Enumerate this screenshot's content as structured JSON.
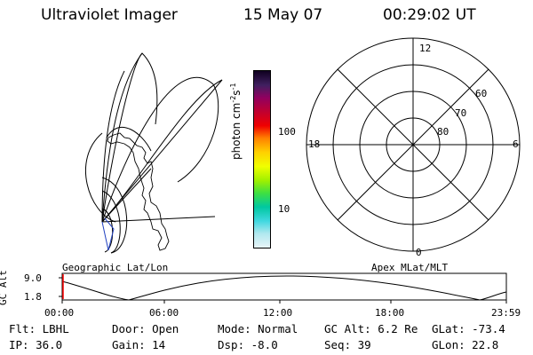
{
  "header": {
    "title": "Ultraviolet Imager",
    "date": "15 May 07",
    "time": "00:29:02 UT"
  },
  "geo_map": {
    "label": "Geographic Lat/Lon"
  },
  "colorbar": {
    "unit_main": "photon cm",
    "unit_exp1": "-2",
    "unit_s": "s",
    "unit_exp2": "-1",
    "tick_100": "100",
    "tick_10": "10",
    "colors": [
      "#e8f4f8",
      "#b0e8ef",
      "#40d8e0",
      "#00c8a0",
      "#40e040",
      "#a0f000",
      "#f0ff00",
      "#ffd000",
      "#ff8000",
      "#f00000",
      "#c00030",
      "#900060",
      "#402060",
      "#100020"
    ]
  },
  "polar": {
    "label": "Apex MLat/MLT",
    "mlt_top": "12",
    "mlt_left": "18",
    "mlt_right": "6",
    "mlt_bottom": "0",
    "lat_60": "60",
    "lat_70": "70",
    "lat_80": "80"
  },
  "altitude_plot": {
    "ylabel": "GC Alt",
    "ytick_high": "9.0",
    "ytick_low": "1.8",
    "xticks": [
      "00:00",
      "06:00",
      "12:00",
      "18:00",
      "23:59"
    ],
    "marker_color": "#ff0000"
  },
  "info": {
    "flt": "Flt: LBHL",
    "ip": "IP: 36.0",
    "door": "Door: Open",
    "gain": "Gain: 14",
    "mode": "Mode: Normal",
    "dsp": "Dsp:    -8.0",
    "gc_alt": "GC Alt: 6.2 Re",
    "seq": "Seq: 39",
    "glat": "GLat: -73.4",
    "glon": "GLon:  22.8"
  }
}
